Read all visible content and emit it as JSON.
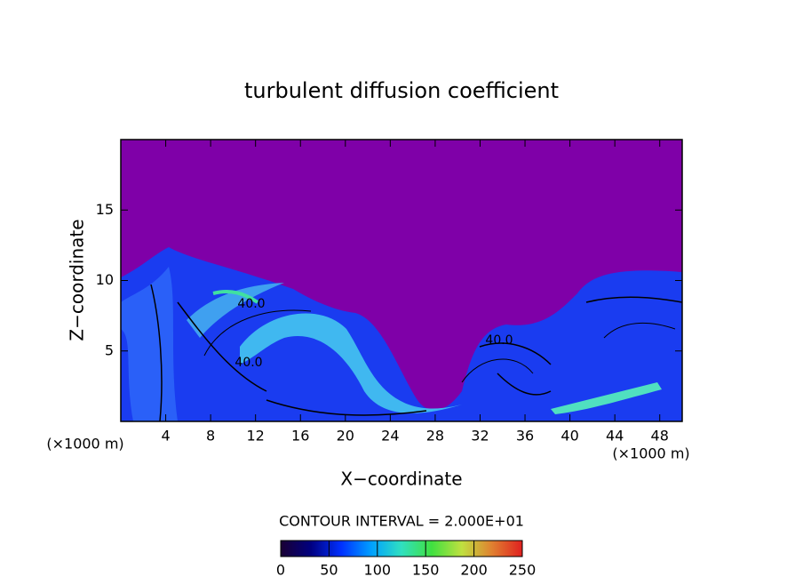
{
  "chart_data": {
    "type": "contour",
    "title": "turbulent diffusion coefficient",
    "xlabel": "X−coordinate",
    "ylabel": "Z−coordinate",
    "x_unit_left": "(×1000 m)",
    "x_unit_right": "(×1000 m)",
    "xlim": [
      0,
      50
    ],
    "ylim": [
      0,
      20
    ],
    "xticks": [
      4,
      8,
      12,
      16,
      20,
      24,
      28,
      32,
      36,
      40,
      44,
      48
    ],
    "yticks": [
      5,
      10,
      15
    ],
    "contour_labels": [
      "40.0",
      "40.0",
      "40.0"
    ],
    "contour_interval": "CONTOUR INTERVAL = 2.000E+01",
    "colorbar": {
      "lim": [
        0,
        250
      ],
      "ticks": [
        0,
        50,
        100,
        150,
        200,
        250
      ],
      "colormap": [
        "#1a0033",
        "#000080",
        "#0030ff",
        "#00a0ff",
        "#30e0c0",
        "#40e040",
        "#c0e040",
        "#e08030",
        "#e02020"
      ]
    }
  }
}
